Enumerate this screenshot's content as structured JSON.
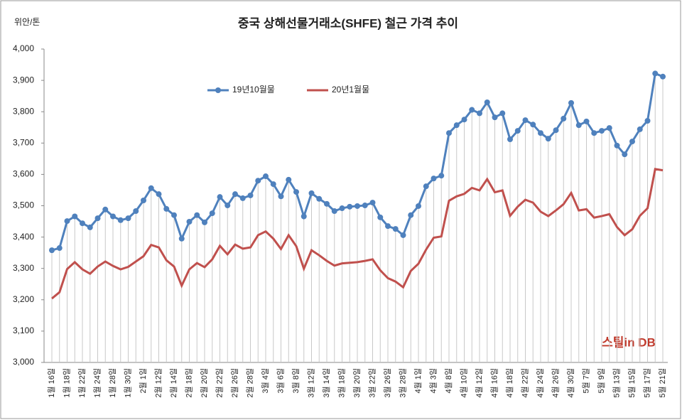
{
  "chart_data": {
    "type": "line",
    "title": "중국 상해선물거래소(SHFE)  철근 가격 추이",
    "y_label": "위안/톤",
    "watermark": "스틸in DB",
    "legend": "top-left",
    "categories": [
      "1월 16일",
      null,
      "1월 18일",
      null,
      "1월 22일",
      null,
      "1월 24일",
      null,
      "1월 28일",
      null,
      "1월 30일",
      null,
      "2월 1일",
      null,
      "2월 12일",
      null,
      "2월 14일",
      null,
      "2월 18일",
      null,
      "2월 20일",
      null,
      "2월 22일",
      null,
      "2월 26일",
      null,
      "2월 28일",
      null,
      "3월 4일",
      null,
      "3월 6일",
      null,
      "3월 8일",
      null,
      "3월 12일",
      null,
      "3월 14일",
      null,
      "3월 18일",
      null,
      "3월 20일",
      null,
      "3월 22일",
      null,
      "3월 26일",
      null,
      "3월 28일",
      null,
      "4월 1일",
      null,
      "4월 3일",
      null,
      "4월 8일",
      null,
      "4월 10일",
      null,
      "4월 12일",
      null,
      "4월 16일",
      null,
      "4월 18일",
      null,
      "4월 22일",
      null,
      "4월 24일",
      null,
      "4월 26일",
      null,
      "4월 30일",
      null,
      "5월 7일",
      null,
      "5월 9일",
      null,
      "5월 13일",
      null,
      "5월 15일",
      null,
      "5월 17일",
      null,
      "5월 21일"
    ],
    "series": [
      {
        "name": "19년10월물",
        "color": "#4f81bd",
        "markers": true,
        "values": [
          3358,
          3365,
          3451,
          3466,
          3444,
          3431,
          3460,
          3488,
          3466,
          3454,
          3460,
          3483,
          3517,
          3556,
          3537,
          3490,
          3470,
          3395,
          3449,
          3470,
          3447,
          3476,
          3528,
          3501,
          3537,
          3524,
          3533,
          3580,
          3594,
          3569,
          3530,
          3583,
          3544,
          3466,
          3540,
          3522,
          3506,
          3483,
          3492,
          3497,
          3499,
          3501,
          3510,
          3463,
          3435,
          3426,
          3406,
          3470,
          3499,
          3562,
          3587,
          3596,
          3732,
          3757,
          3775,
          3806,
          3795,
          3830,
          3782,
          3795,
          3712,
          3739,
          3773,
          3759,
          3732,
          3714,
          3741,
          3778,
          3828,
          3757,
          3769,
          3732,
          3739,
          3748,
          3692,
          3664,
          3705,
          3744,
          3771,
          3922,
          3912
        ]
      },
      {
        "name": "20년1월물",
        "color": "#c0504d",
        "markers": false,
        "values": [
          3204,
          3224,
          3298,
          3320,
          3297,
          3283,
          3306,
          3322,
          3308,
          3297,
          3305,
          3322,
          3339,
          3375,
          3367,
          3326,
          3306,
          3245,
          3297,
          3317,
          3304,
          3329,
          3372,
          3345,
          3376,
          3363,
          3367,
          3406,
          3418,
          3395,
          3362,
          3406,
          3371,
          3299,
          3358,
          3342,
          3324,
          3309,
          3316,
          3318,
          3320,
          3324,
          3329,
          3294,
          3269,
          3258,
          3240,
          3292,
          3315,
          3360,
          3398,
          3402,
          3516,
          3530,
          3538,
          3557,
          3549,
          3585,
          3543,
          3549,
          3468,
          3497,
          3519,
          3510,
          3481,
          3467,
          3485,
          3505,
          3541,
          3485,
          3489,
          3462,
          3467,
          3473,
          3432,
          3406,
          3425,
          3468,
          3492,
          3617,
          3613
        ]
      }
    ],
    "ylim": [
      3000,
      4000
    ],
    "yticks": [
      {
        "value": 3000,
        "label": "3,000"
      },
      {
        "value": 3100,
        "label": "3,100"
      },
      {
        "value": 3200,
        "label": "3,200"
      },
      {
        "value": 3300,
        "label": "3,300"
      },
      {
        "value": 3400,
        "label": "3,400"
      },
      {
        "value": 3500,
        "label": "3,500"
      },
      {
        "value": 3600,
        "label": "3,600"
      },
      {
        "value": 3700,
        "label": "3,700"
      },
      {
        "value": 3800,
        "label": "3,800"
      },
      {
        "value": 3900,
        "label": "3,900"
      },
      {
        "value": 4000,
        "label": "4,000"
      }
    ],
    "drop_lines": true
  }
}
